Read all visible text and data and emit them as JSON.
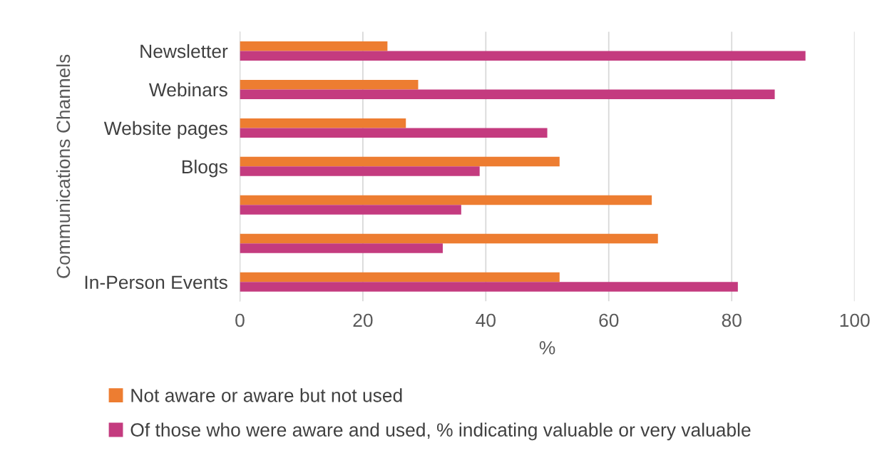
{
  "chart_data": {
    "type": "bar",
    "orientation": "horizontal",
    "categories": [
      "Newsletter",
      "Webinars",
      "Website pages",
      "Blogs",
      null,
      null,
      "In-Person Events"
    ],
    "series": [
      {
        "name": "Not aware or aware but not used",
        "color": "#ed7d31",
        "values": [
          24,
          29,
          27,
          52,
          67,
          68,
          52
        ]
      },
      {
        "name": "Of those who were aware and used, % indicating valuable or very valuable",
        "color": "#c43b7f",
        "values": [
          92,
          87,
          50,
          39,
          36,
          33,
          81
        ]
      }
    ],
    "xlabel": "%",
    "ylabel": "Communications Channels",
    "xlim": [
      0,
      100
    ],
    "xticks": [
      0,
      20,
      40,
      60,
      80,
      100
    ],
    "grid": "x",
    "legend": "bottom"
  }
}
